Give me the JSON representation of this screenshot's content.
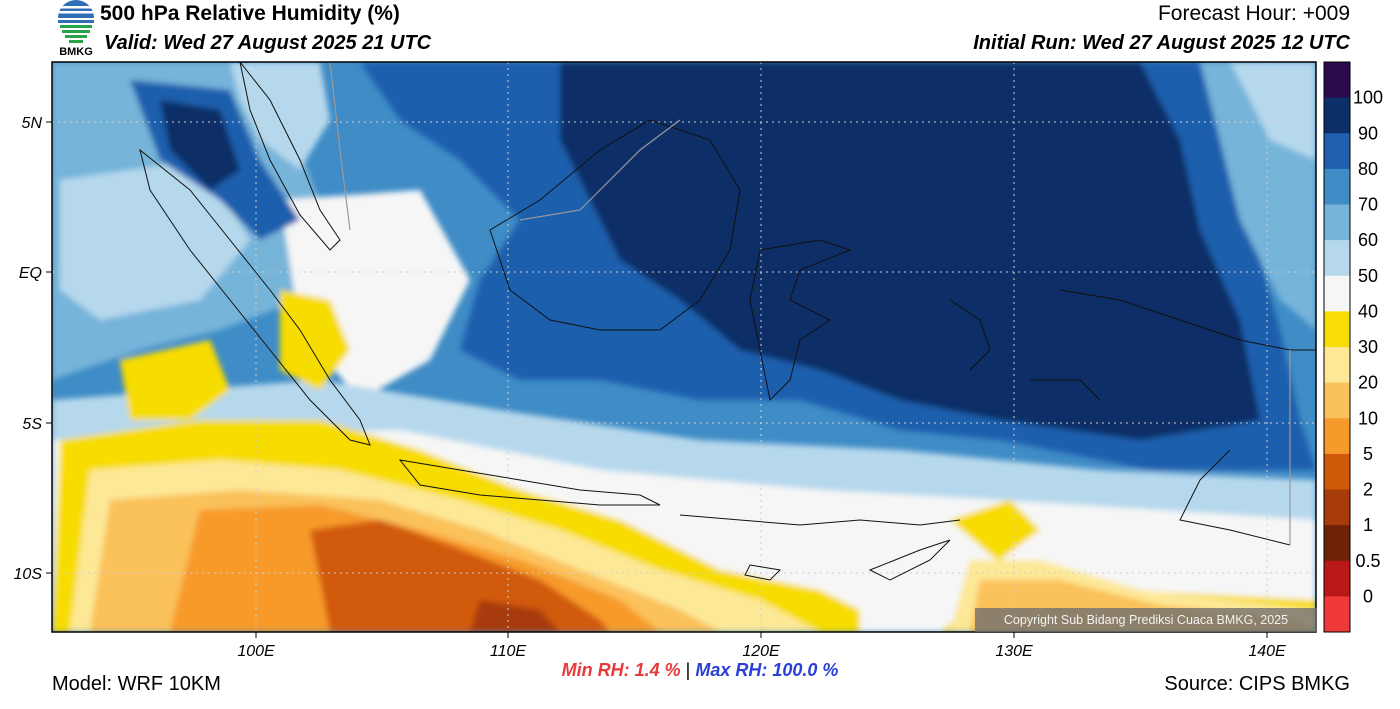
{
  "header": {
    "title": "500 hPa Relative Humidity (%)",
    "valid": "Valid: Wed 27 August 2025 21 UTC",
    "forecast_hour": "Forecast Hour: +009",
    "initial_run": "Initial Run: Wed 27 August 2025 12 UTC"
  },
  "logo": {
    "text": "BMKG"
  },
  "axes": {
    "lat_labels": [
      "5N",
      "EQ",
      "5S",
      "10S"
    ],
    "lon_labels": [
      "100E",
      "110E",
      "120E",
      "130E",
      "140E"
    ]
  },
  "colorbar": {
    "labels": [
      "100",
      "90",
      "80",
      "70",
      "60",
      "50",
      "40",
      "30",
      "20",
      "10",
      "5",
      "2",
      "1",
      "0.5",
      "0"
    ],
    "colors": [
      "#2b0a4e",
      "#0b2f66",
      "#1f5fad",
      "#3f8cc6",
      "#76b4da",
      "#b6d8ec",
      "#f6f6f6",
      "#f7dc05",
      "#fde896",
      "#fbc15a",
      "#f79a2c",
      "#d15a0a",
      "#a83b0a",
      "#6e2308",
      "#ba1818",
      "#f03a3a"
    ]
  },
  "footer": {
    "model": "Model: WRF 10KM",
    "source": "Source: CIPS BMKG",
    "min_label": "Min RH:",
    "min_value": "1.4 %",
    "separator": "|",
    "max_label": "Max RH: 100.0 %"
  },
  "copyright": "Copyright Sub Bidang Prediksi Cuaca BMKG, 2025"
}
